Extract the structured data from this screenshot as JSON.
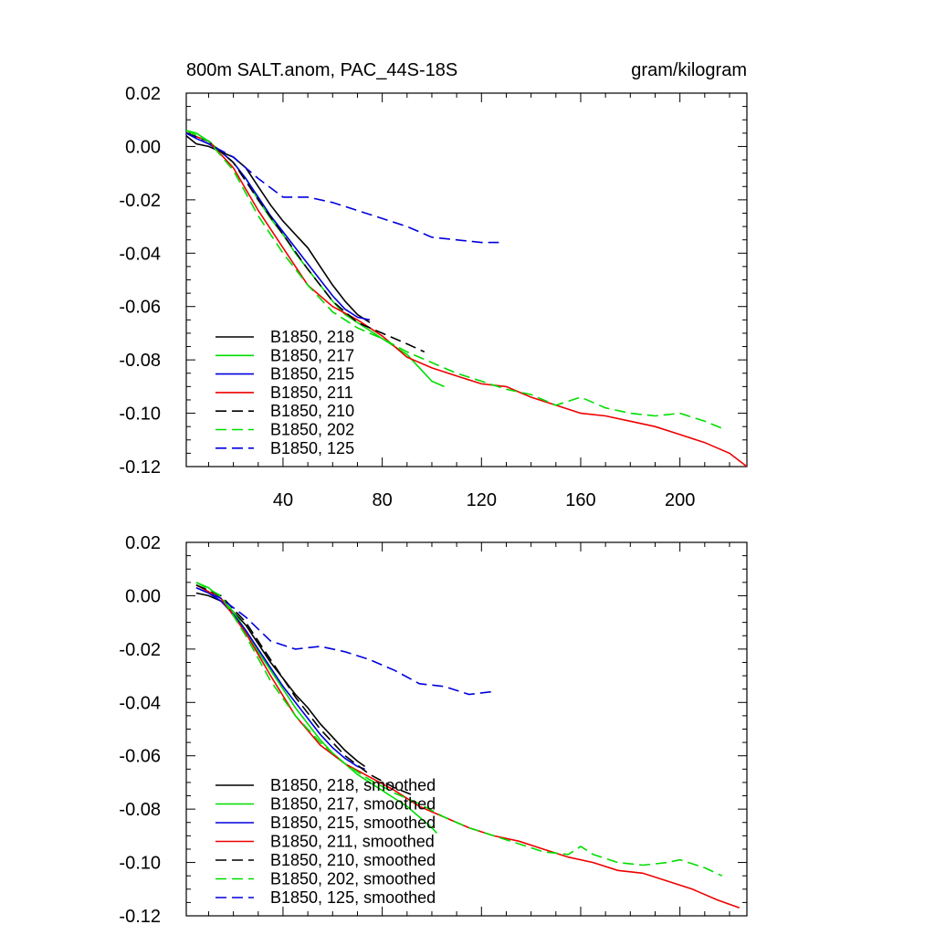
{
  "chart_data": [
    {
      "type": "line",
      "title_left": "800m SALT.anom, PAC_44S-18S",
      "title_right": "gram/kilogram",
      "xlim": [
        1,
        227
      ],
      "ylim": [
        -0.12,
        0.02
      ],
      "xticks": [
        40,
        80,
        120,
        160,
        200
      ],
      "xtick_labels": [
        "40",
        "80",
        "120",
        "160",
        "200"
      ],
      "yticks": [
        0.02,
        0.0,
        -0.02,
        -0.04,
        -0.06,
        -0.08,
        -0.1,
        -0.12
      ],
      "ytick_labels": [
        "0.02",
        "0.00",
        "-0.02",
        "-0.04",
        "-0.06",
        "-0.08",
        "-0.10",
        "-0.12"
      ],
      "legend_position": "bottom-left",
      "series": [
        {
          "name": "B1850, 218",
          "color": "#000000",
          "dash": "solid",
          "x": [
            1,
            5,
            10,
            15,
            20,
            25,
            30,
            35,
            40,
            45,
            50,
            55,
            60,
            65,
            70,
            75
          ],
          "y": [
            0.004,
            0.001,
            0.0,
            -0.002,
            -0.004,
            -0.008,
            -0.015,
            -0.022,
            -0.028,
            -0.033,
            -0.038,
            -0.045,
            -0.052,
            -0.058,
            -0.063,
            -0.066
          ]
        },
        {
          "name": "B1850, 217",
          "color": "#00dd00",
          "dash": "solid",
          "x": [
            1,
            5,
            10,
            15,
            20,
            25,
            30,
            35,
            40,
            45,
            50,
            55,
            60,
            65,
            70,
            75,
            80,
            85,
            90,
            95,
            100,
            105
          ],
          "y": [
            0.006,
            0.005,
            0.002,
            -0.002,
            -0.006,
            -0.012,
            -0.02,
            -0.027,
            -0.033,
            -0.04,
            -0.046,
            -0.052,
            -0.058,
            -0.063,
            -0.066,
            -0.069,
            -0.072,
            -0.075,
            -0.078,
            -0.083,
            -0.088,
            -0.09
          ]
        },
        {
          "name": "B1850, 215",
          "color": "#0000dd",
          "dash": "solid",
          "x": [
            1,
            5,
            10,
            15,
            20,
            25,
            30,
            35,
            40,
            45,
            50,
            55,
            60,
            65,
            70,
            75
          ],
          "y": [
            0.005,
            0.003,
            0.001,
            -0.002,
            -0.006,
            -0.012,
            -0.019,
            -0.026,
            -0.032,
            -0.038,
            -0.044,
            -0.05,
            -0.056,
            -0.061,
            -0.064,
            -0.065
          ]
        },
        {
          "name": "B1850, 211",
          "color": "#ee0000",
          "dash": "solid",
          "x": [
            1,
            10,
            20,
            30,
            40,
            50,
            60,
            70,
            80,
            90,
            100,
            110,
            120,
            130,
            140,
            150,
            160,
            170,
            180,
            190,
            200,
            210,
            220,
            227
          ],
          "y": [
            0.005,
            0.002,
            -0.008,
            -0.024,
            -0.038,
            -0.052,
            -0.06,
            -0.065,
            -0.071,
            -0.079,
            -0.083,
            -0.086,
            -0.089,
            -0.09,
            -0.094,
            -0.097,
            -0.1,
            -0.101,
            -0.103,
            -0.105,
            -0.108,
            -0.111,
            -0.115,
            -0.12
          ]
        },
        {
          "name": "B1850, 210",
          "color": "#000000",
          "dash": "dashed",
          "x": [
            1,
            10,
            20,
            30,
            40,
            50,
            60,
            70,
            80,
            90,
            97
          ],
          "y": [
            0.005,
            0.002,
            -0.006,
            -0.02,
            -0.033,
            -0.046,
            -0.058,
            -0.066,
            -0.07,
            -0.074,
            -0.077
          ]
        },
        {
          "name": "B1850, 202",
          "color": "#00dd00",
          "dash": "dashed",
          "x": [
            1,
            10,
            20,
            30,
            40,
            50,
            60,
            70,
            80,
            90,
            100,
            110,
            120,
            130,
            140,
            150,
            160,
            170,
            180,
            190,
            200,
            210,
            218
          ],
          "y": [
            0.006,
            0.002,
            -0.009,
            -0.026,
            -0.04,
            -0.052,
            -0.062,
            -0.068,
            -0.072,
            -0.077,
            -0.081,
            -0.085,
            -0.088,
            -0.091,
            -0.093,
            -0.097,
            -0.094,
            -0.098,
            -0.1,
            -0.101,
            -0.1,
            -0.103,
            -0.106
          ]
        },
        {
          "name": "B1850, 125",
          "color": "#0000dd",
          "dash": "dashed",
          "x": [
            1,
            10,
            20,
            30,
            40,
            50,
            60,
            70,
            80,
            90,
            100,
            110,
            120,
            127
          ],
          "y": [
            0.005,
            0.001,
            -0.004,
            -0.012,
            -0.019,
            -0.019,
            -0.021,
            -0.024,
            -0.027,
            -0.03,
            -0.034,
            -0.035,
            -0.036,
            -0.036
          ]
        }
      ]
    },
    {
      "type": "line",
      "xlim": [
        1,
        227
      ],
      "ylim": [
        -0.12,
        0.02
      ],
      "xticks": [
        40,
        80,
        120,
        160,
        200
      ],
      "yticks": [
        0.02,
        0.0,
        -0.02,
        -0.04,
        -0.06,
        -0.08,
        -0.1,
        -0.12
      ],
      "ytick_labels": [
        "0.02",
        "0.00",
        "-0.02",
        "-0.04",
        "-0.06",
        "-0.08",
        "-0.10",
        "-0.12"
      ],
      "legend_position": "bottom-left",
      "series": [
        {
          "name": "B1850, 218, smoothed",
          "color": "#000000",
          "dash": "solid",
          "x": [
            5,
            10,
            15,
            20,
            25,
            30,
            35,
            40,
            45,
            50,
            55,
            60,
            65,
            70,
            73
          ],
          "y": [
            0.001,
            0.0,
            -0.002,
            -0.006,
            -0.011,
            -0.018,
            -0.025,
            -0.031,
            -0.037,
            -0.042,
            -0.048,
            -0.053,
            -0.058,
            -0.062,
            -0.064
          ]
        },
        {
          "name": "B1850, 217, smoothed",
          "color": "#00dd00",
          "dash": "solid",
          "x": [
            5,
            10,
            15,
            20,
            25,
            30,
            35,
            40,
            45,
            50,
            55,
            60,
            65,
            70,
            75,
            80,
            85,
            90,
            95,
            100,
            102
          ],
          "y": [
            0.005,
            0.003,
            -0.001,
            -0.006,
            -0.013,
            -0.021,
            -0.028,
            -0.035,
            -0.042,
            -0.048,
            -0.054,
            -0.059,
            -0.063,
            -0.067,
            -0.07,
            -0.073,
            -0.076,
            -0.079,
            -0.083,
            -0.087,
            -0.089
          ]
        },
        {
          "name": "B1850, 215, smoothed",
          "color": "#0000dd",
          "dash": "solid",
          "x": [
            5,
            10,
            15,
            20,
            25,
            30,
            35,
            40,
            45,
            50,
            55,
            60,
            65,
            70,
            73
          ],
          "y": [
            0.003,
            0.001,
            -0.002,
            -0.007,
            -0.013,
            -0.02,
            -0.027,
            -0.034,
            -0.04,
            -0.046,
            -0.052,
            -0.057,
            -0.061,
            -0.064,
            -0.065
          ]
        },
        {
          "name": "B1850, 211, smoothed",
          "color": "#ee0000",
          "dash": "solid",
          "x": [
            5,
            15,
            25,
            35,
            45,
            55,
            65,
            75,
            85,
            95,
            105,
            115,
            125,
            135,
            145,
            155,
            165,
            175,
            185,
            195,
            205,
            215,
            224
          ],
          "y": [
            0.004,
            -0.001,
            -0.014,
            -0.03,
            -0.045,
            -0.056,
            -0.063,
            -0.068,
            -0.073,
            -0.079,
            -0.083,
            -0.087,
            -0.09,
            -0.092,
            -0.095,
            -0.098,
            -0.1,
            -0.103,
            -0.104,
            -0.107,
            -0.11,
            -0.114,
            -0.117
          ]
        },
        {
          "name": "B1850, 210, smoothed",
          "color": "#000000",
          "dash": "dashed",
          "x": [
            5,
            15,
            25,
            35,
            45,
            55,
            65,
            75,
            85,
            93
          ],
          "y": [
            0.004,
            0.0,
            -0.01,
            -0.024,
            -0.038,
            -0.05,
            -0.06,
            -0.067,
            -0.072,
            -0.075
          ]
        },
        {
          "name": "B1850, 202, smoothed",
          "color": "#00dd00",
          "dash": "dashed",
          "x": [
            5,
            15,
            25,
            35,
            45,
            55,
            65,
            75,
            85,
            95,
            105,
            115,
            125,
            135,
            145,
            155,
            160,
            165,
            175,
            185,
            195,
            200,
            210,
            217
          ],
          "y": [
            0.005,
            0.0,
            -0.015,
            -0.032,
            -0.045,
            -0.055,
            -0.063,
            -0.069,
            -0.074,
            -0.078,
            -0.083,
            -0.087,
            -0.09,
            -0.093,
            -0.096,
            -0.097,
            -0.094,
            -0.097,
            -0.1,
            -0.101,
            -0.1,
            -0.099,
            -0.102,
            -0.105
          ]
        },
        {
          "name": "B1850, 125, smoothed",
          "color": "#0000dd",
          "dash": "dashed",
          "x": [
            5,
            15,
            25,
            35,
            45,
            55,
            65,
            75,
            85,
            95,
            105,
            115,
            124
          ],
          "y": [
            0.003,
            -0.001,
            -0.008,
            -0.017,
            -0.02,
            -0.019,
            -0.021,
            -0.024,
            -0.028,
            -0.033,
            -0.034,
            -0.037,
            -0.036
          ]
        }
      ]
    }
  ]
}
